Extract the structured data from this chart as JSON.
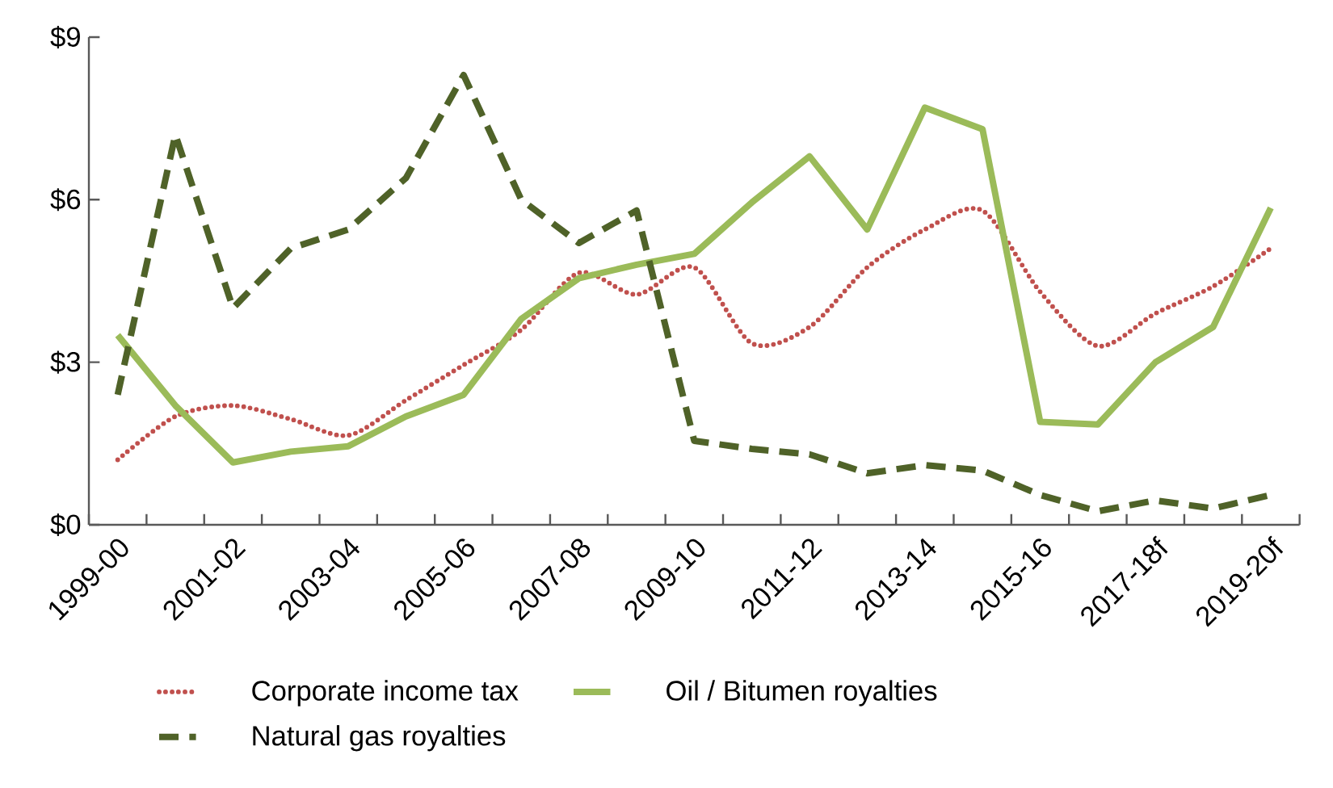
{
  "chart_data": {
    "type": "line",
    "categories": [
      "1999-00",
      null,
      "2001-02",
      null,
      "2003-04",
      null,
      "2005-06",
      null,
      "2007-08",
      null,
      "2009-10",
      null,
      "2011-12",
      null,
      "2013-14",
      null,
      "2015-16",
      null,
      "2017-18f",
      null,
      "2019-20f"
    ],
    "series": [
      {
        "name": "Corporate income tax",
        "color": "#c0504d",
        "line_style": "dotted",
        "values": [
          1.2,
          2.0,
          2.2,
          1.95,
          1.65,
          2.3,
          2.95,
          3.6,
          4.65,
          4.25,
          4.75,
          3.35,
          3.65,
          4.75,
          5.45,
          5.8,
          4.3,
          3.3,
          3.9,
          4.4,
          5.1
        ]
      },
      {
        "name": "Oil / Bitumen royalties",
        "color": "#9bbb59",
        "line_style": "solid",
        "values": [
          3.5,
          2.2,
          1.15,
          1.35,
          1.45,
          2.0,
          2.4,
          3.8,
          4.55,
          4.8,
          5.0,
          5.95,
          6.8,
          5.45,
          7.7,
          7.3,
          1.9,
          1.85,
          3.0,
          3.65,
          5.85
        ]
      },
      {
        "name": "Natural gas royalties",
        "color": "#4f6228",
        "line_style": "dashed",
        "values": [
          2.4,
          7.2,
          4.0,
          5.1,
          5.45,
          6.4,
          8.3,
          6.0,
          5.2,
          5.8,
          1.55,
          1.4,
          1.3,
          0.95,
          1.1,
          1.0,
          0.55,
          0.25,
          0.45,
          0.3,
          0.55
        ]
      }
    ],
    "ylim": [
      0,
      9
    ],
    "yticks": [
      {
        "value": 0,
        "label": "$0"
      },
      {
        "value": 3,
        "label": "$3"
      },
      {
        "value": 6,
        "label": "$6"
      },
      {
        "value": 9,
        "label": "$9"
      }
    ],
    "grid": false,
    "legend": "bottom",
    "marker": "none"
  }
}
